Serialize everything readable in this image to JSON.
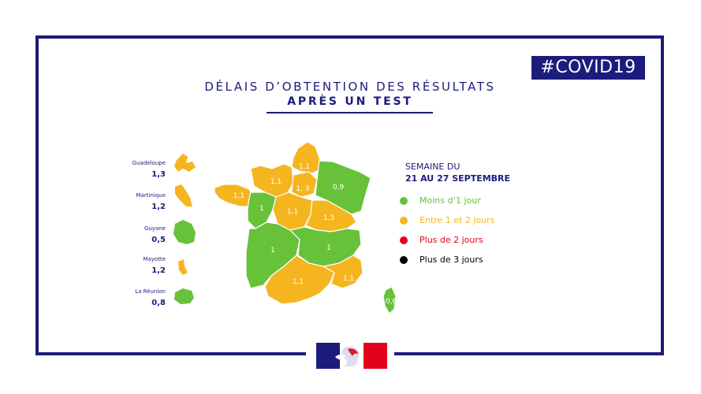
{
  "hashtag": "#COVID19",
  "title_line1": "DÉLAIS D’OBTENTION DES RÉSULTATS",
  "title_line2": "APRÈS UN TEST",
  "overseas": [
    {
      "name": "Guadeloupe",
      "value": "1,3",
      "color": "#f5b51e"
    },
    {
      "name": "Martinique",
      "value": "1,2",
      "color": "#f5b51e"
    },
    {
      "name": "Guyane",
      "value": "0,5",
      "color": "#67c23a"
    },
    {
      "name": "Mayotte",
      "value": "1,2",
      "color": "#f5b51e"
    },
    {
      "name": "La Réunion",
      "value": "0,8",
      "color": "#67c23a"
    }
  ],
  "regions": [
    {
      "name": "Hauts-de-France",
      "value": "1,1",
      "color": "#f5b51e"
    },
    {
      "name": "Normandie",
      "value": "1,1",
      "color": "#f5b51e"
    },
    {
      "name": "Île-de-France",
      "value": "1, 3",
      "color": "#f5b51e"
    },
    {
      "name": "Grand Est",
      "value": "0,9",
      "color": "#67c23a"
    },
    {
      "name": "Bretagne",
      "value": "1,1",
      "color": "#f5b51e"
    },
    {
      "name": "Pays de la Loire",
      "value": "1",
      "color": "#67c23a"
    },
    {
      "name": "Centre-Val de Loire",
      "value": "1,1",
      "color": "#f5b51e"
    },
    {
      "name": "Bourgogne-Franche-Comté",
      "value": "1,3",
      "color": "#f5b51e"
    },
    {
      "name": "Nouvelle-Aquitaine",
      "value": "1",
      "color": "#67c23a"
    },
    {
      "name": "Auvergne-Rhône-Alpes",
      "value": "1",
      "color": "#67c23a"
    },
    {
      "name": "Occitanie",
      "value": "1,1",
      "color": "#f5b51e"
    },
    {
      "name": "Provence-Alpes-Côte d'Azur",
      "value": "1,1",
      "color": "#f5b51e"
    },
    {
      "name": "Corse",
      "value": "0,6",
      "color": "#67c23a"
    }
  ],
  "legend": {
    "week_line1": "SEMAINE DU",
    "week_line2": "21 AU 27 SEPTEMBRE",
    "items": [
      {
        "label": "Moins d’1 jour",
        "color": "#67c23a"
      },
      {
        "label": "Entre 1 et 2 jours",
        "color": "#f5b51e"
      },
      {
        "label": "Plus de 2 jours",
        "color": "#e3001b"
      },
      {
        "label": "Plus de 3 jours",
        "color": "#000000"
      }
    ]
  },
  "colors": {
    "navy": "#1b1c7c",
    "green": "#67c23a",
    "orange": "#f5b51e",
    "red": "#e3001b"
  }
}
